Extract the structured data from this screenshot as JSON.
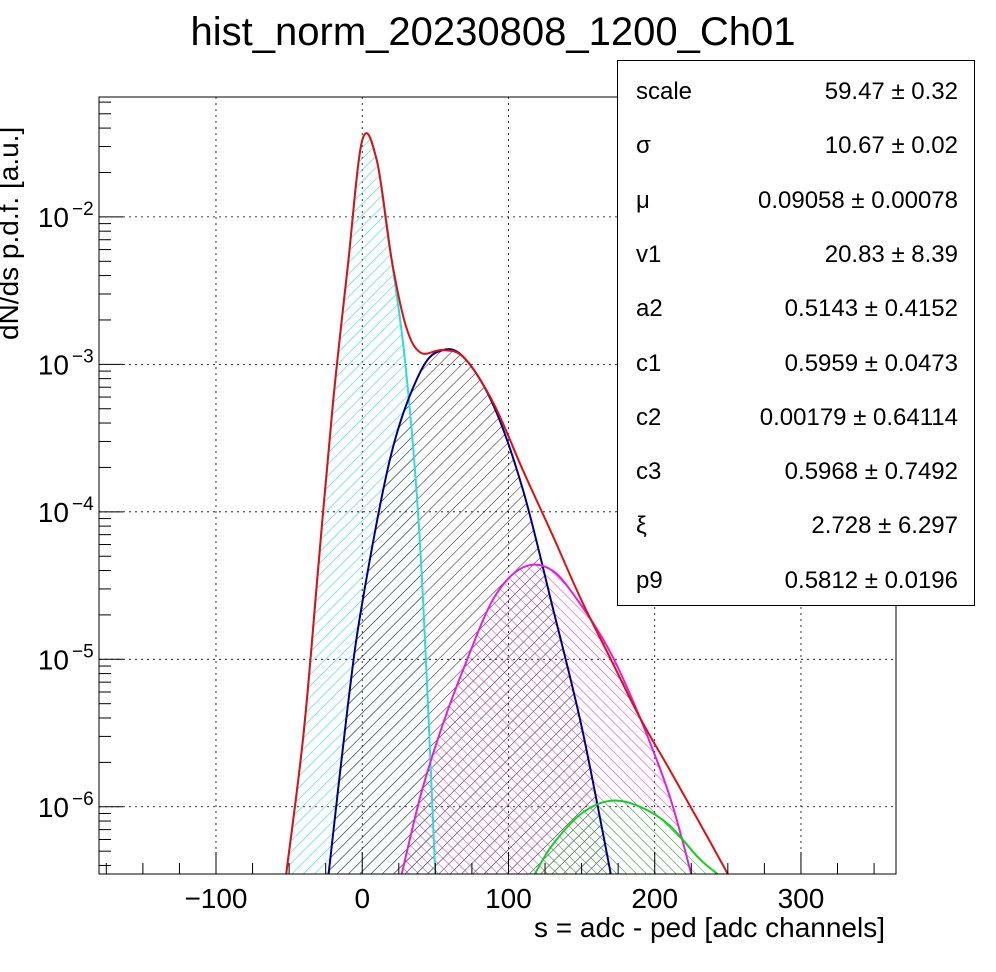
{
  "title": "hist_norm_20230808_1200_Ch01",
  "chart_data": {
    "type": "line",
    "title": "hist_norm_20230808_1200_Ch01",
    "xlabel": "s = adc - ped [adc channels]",
    "ylabel": "dN/ds p.d.f. [a.u.]",
    "xlim": [
      -180,
      365
    ],
    "ylim": [
      3.5e-07,
      0.065
    ],
    "y_scale": "log",
    "grid": true,
    "x_tick_labels": [
      "−100",
      "0",
      "100",
      "200",
      "300"
    ],
    "x_tick_values": [
      -100,
      0,
      100,
      200,
      300
    ],
    "y_tick_values": [
      1e-06,
      1e-05,
      0.0001,
      0.001,
      0.01
    ],
    "y_tick_labels": [
      {
        "base": "10",
        "exp": "−6"
      },
      {
        "base": "10",
        "exp": "−5"
      },
      {
        "base": "10",
        "exp": "−4"
      },
      {
        "base": "10",
        "exp": "−3"
      },
      {
        "base": "10",
        "exp": "−2"
      }
    ],
    "series": [
      {
        "color": "#30d8e0",
        "style": "hatched-fill",
        "x": [
          -52,
          -40,
          -30,
          -20,
          -10,
          0,
          10,
          20,
          30,
          40,
          50
        ],
        "y": [
          3.5e-07,
          3.2e-06,
          4.3e-05,
          0.00055,
          0.0045,
          0.033,
          0.024,
          0.0052,
          0.0009,
          5e-05,
          3.5e-07
        ]
      },
      {
        "color": "#00008c",
        "style": "hatched-fill",
        "x": [
          -23,
          -10,
          0,
          20,
          40,
          55,
          70,
          90,
          110,
          130,
          150,
          170
        ],
        "y": [
          3.5e-07,
          4.7e-06,
          2.4e-05,
          0.00025,
          0.0009,
          0.00125,
          0.0011,
          0.00052,
          0.00014,
          2.3e-05,
          3.5e-06,
          3.5e-07
        ]
      },
      {
        "color": "#e020e0",
        "style": "hatched-fill",
        "x": [
          27,
          40,
          55,
          70,
          90,
          110,
          130,
          150,
          170,
          190,
          210,
          225
        ],
        "y": [
          3.5e-07,
          1.2e-06,
          3.6e-06,
          9e-06,
          2.6e-05,
          4.2e-05,
          4e-05,
          2.3e-05,
          1.1e-05,
          4e-06,
          1.2e-06,
          3.5e-07
        ]
      },
      {
        "color": "#10d020",
        "style": "hatched-fill",
        "x": [
          118,
          130,
          150,
          170,
          190,
          210,
          230,
          243
        ],
        "y": [
          3.5e-07,
          5.5e-07,
          9e-07,
          1.1e-06,
          1e-06,
          7.5e-07,
          4.5e-07,
          3.5e-07
        ]
      },
      {
        "color": "#e01010",
        "style": "line",
        "x": [
          -52,
          -40,
          -30,
          -20,
          -10,
          0,
          10,
          20,
          30,
          40,
          55,
          70,
          90,
          110,
          130,
          150,
          170,
          190,
          210,
          230,
          250
        ],
        "y": [
          3.5e-07,
          3.2e-06,
          4.3e-05,
          0.00055,
          0.0045,
          0.033,
          0.024,
          0.0052,
          0.0018,
          0.0012,
          0.00125,
          0.0011,
          0.00054,
          0.00019,
          7e-05,
          2.5e-05,
          1e-05,
          4e-06,
          1.8e-06,
          8e-07,
          3.5e-07
        ]
      }
    ],
    "stats": [
      {
        "name": "scale",
        "value": "59.47 ± 0.32"
      },
      {
        "name": "σ",
        "value": "10.67 ± 0.02"
      },
      {
        "name": "μ",
        "value": "0.09058 ± 0.00078"
      },
      {
        "name": "v1",
        "value": "20.83 ± 8.39"
      },
      {
        "name": "a2",
        "value": "0.5143 ± 0.4152"
      },
      {
        "name": "c1",
        "value": "0.5959 ± 0.0473"
      },
      {
        "name": "c2",
        "value": "0.00179 ± 0.64114"
      },
      {
        "name": "c3",
        "value": "0.5968 ± 0.7492"
      },
      {
        "name": "ξ",
        "value": "2.728 ± 6.297"
      },
      {
        "name": "p9",
        "value": "0.5812 ± 0.0196"
      }
    ]
  }
}
